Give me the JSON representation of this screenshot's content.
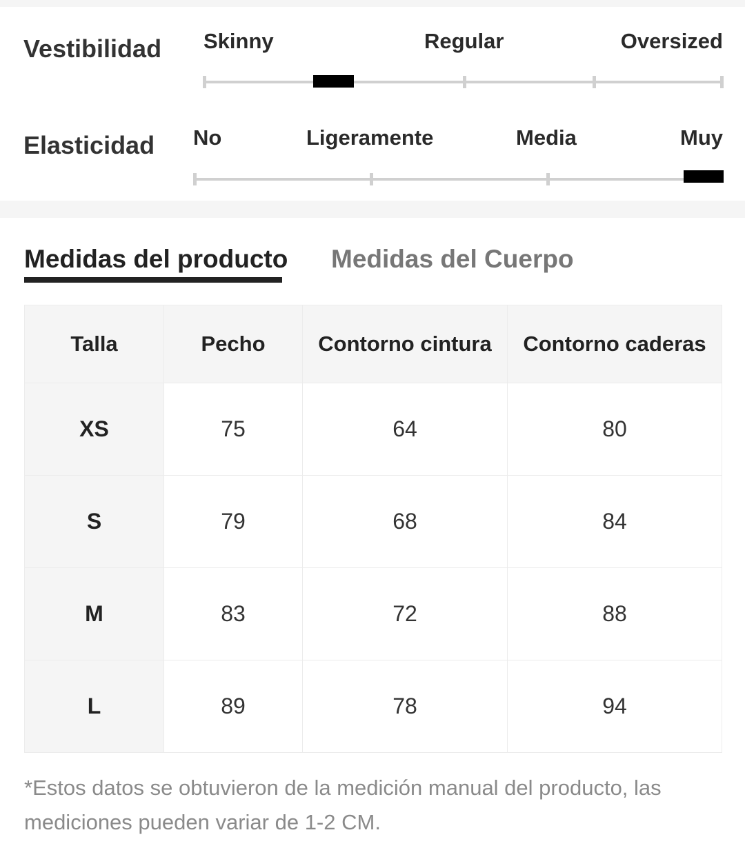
{
  "fit": {
    "label": "Vestibilidad",
    "options": [
      "Skinny",
      "Regular",
      "Oversized"
    ],
    "selected_level": 0.25
  },
  "elasticity": {
    "label": "Elasticidad",
    "options": [
      "No",
      "Ligeramente",
      "Media",
      "Muy"
    ],
    "selected_level": 1.0
  },
  "tabs": [
    {
      "label": "Medidas del producto",
      "active": true
    },
    {
      "label": "Medidas del Cuerpo",
      "active": false
    }
  ],
  "table": {
    "headers": [
      "Talla",
      "Pecho",
      "Contorno cintura",
      "Contorno caderas"
    ],
    "rows": [
      [
        "XS",
        "75",
        "64",
        "80"
      ],
      [
        "S",
        "79",
        "68",
        "84"
      ],
      [
        "M",
        "83",
        "72",
        "88"
      ],
      [
        "L",
        "89",
        "78",
        "94"
      ]
    ]
  },
  "footnote": "*Estos datos se obtuvieron de la medición manual del producto, las mediciones pueden variar de 1-2 CM.",
  "colors": {
    "marker": "#000000",
    "track": "#d0d0d0",
    "header_bg": "#f5f5f5",
    "note_text": "#8a8a8a"
  }
}
